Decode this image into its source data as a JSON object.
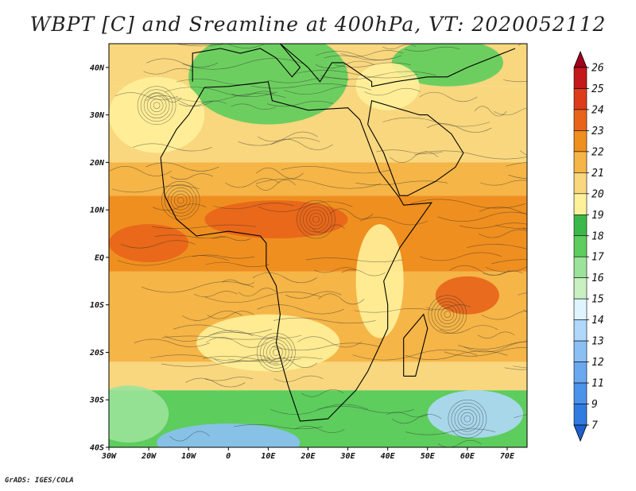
{
  "title": "WBPT [C] and Sreamline at 400hPa, VT: 2020052112",
  "footer": "GrADS: IGES/COLA",
  "map": {
    "lon_range": [
      -30,
      75
    ],
    "lat_range": [
      -40,
      45
    ],
    "lon_ticks": [
      {
        "value": -30,
        "label": "30W"
      },
      {
        "value": -20,
        "label": "20W"
      },
      {
        "value": -10,
        "label": "10W"
      },
      {
        "value": 0,
        "label": "0"
      },
      {
        "value": 10,
        "label": "10E"
      },
      {
        "value": 20,
        "label": "20E"
      },
      {
        "value": 30,
        "label": "30E"
      },
      {
        "value": 40,
        "label": "40E"
      },
      {
        "value": 50,
        "label": "50E"
      },
      {
        "value": 60,
        "label": "60E"
      },
      {
        "value": 70,
        "label": "70E"
      }
    ],
    "lat_ticks": [
      {
        "value": 40,
        "label": "40N"
      },
      {
        "value": 30,
        "label": "30N"
      },
      {
        "value": 20,
        "label": "20N"
      },
      {
        "value": 10,
        "label": "10N"
      },
      {
        "value": 0,
        "label": "EQ"
      },
      {
        "value": -10,
        "label": "10S"
      },
      {
        "value": -20,
        "label": "20S"
      },
      {
        "value": -30,
        "label": "30S"
      },
      {
        "value": -40,
        "label": "40S"
      }
    ]
  },
  "colorbar": {
    "levels": [
      "7",
      "9",
      "11",
      "12",
      "13",
      "14",
      "15",
      "16",
      "17",
      "18",
      "19",
      "20",
      "21",
      "22",
      "23",
      "24",
      "25",
      "26"
    ],
    "colors": [
      "#1e5fcf",
      "#2f7be0",
      "#4a92ea",
      "#6aa8f0",
      "#8cc0f5",
      "#b0d8fa",
      "#dff4ff",
      "#c8f0c0",
      "#9be39a",
      "#5dcd5d",
      "#3cb84a",
      "#fff19a",
      "#f8d77e",
      "#f5b547",
      "#ef8f1f",
      "#e8641a",
      "#dd3c1a",
      "#c4181a",
      "#a0001a"
    ]
  },
  "temperature_field": {
    "bands": [
      {
        "lat_top": 45,
        "lat_bottom": 36,
        "color": "#f8d77e"
      },
      {
        "lat_top": 36,
        "lat_bottom": 20,
        "color": "#f8d77e"
      },
      {
        "lat_top": 20,
        "lat_bottom": 13,
        "color": "#f5b547"
      },
      {
        "lat_top": 13,
        "lat_bottom": -3,
        "color": "#ef8f1f"
      },
      {
        "lat_top": -3,
        "lat_bottom": -22,
        "color": "#f5b547"
      },
      {
        "lat_top": -22,
        "lat_bottom": -28,
        "color": "#f8d77e"
      },
      {
        "lat_top": -28,
        "lat_bottom": -40,
        "color": "#5dcd5d"
      }
    ],
    "patches": [
      {
        "lon": 10,
        "lat": 38,
        "rx": 20,
        "ry": 10,
        "color": "#5dcd5d"
      },
      {
        "lon": 55,
        "lat": 41,
        "rx": 14,
        "ry": 5,
        "color": "#5dcd5d"
      },
      {
        "lon": 40,
        "lat": 36,
        "rx": 8,
        "ry": 5,
        "color": "#fff19a"
      },
      {
        "lon": -18,
        "lat": 30,
        "rx": 12,
        "ry": 8,
        "color": "#fff19a"
      },
      {
        "lon": 12,
        "lat": 8,
        "rx": 18,
        "ry": 4,
        "color": "#e8641a"
      },
      {
        "lon": -20,
        "lat": 3,
        "rx": 10,
        "ry": 4,
        "color": "#e8641a"
      },
      {
        "lon": 60,
        "lat": -8,
        "rx": 8,
        "ry": 4,
        "color": "#e8641a"
      },
      {
        "lon": 38,
        "lat": -5,
        "rx": 6,
        "ry": 12,
        "color": "#fff19a"
      },
      {
        "lon": 10,
        "lat": -18,
        "rx": 18,
        "ry": 6,
        "color": "#fff19a"
      },
      {
        "lon": -25,
        "lat": -33,
        "rx": 10,
        "ry": 6,
        "color": "#9be39a"
      },
      {
        "lon": 0,
        "lat": -39,
        "rx": 18,
        "ry": 4,
        "color": "#8cc0f5"
      },
      {
        "lon": 62,
        "lat": -33,
        "rx": 12,
        "ry": 5,
        "color": "#b0d8fa"
      }
    ]
  }
}
